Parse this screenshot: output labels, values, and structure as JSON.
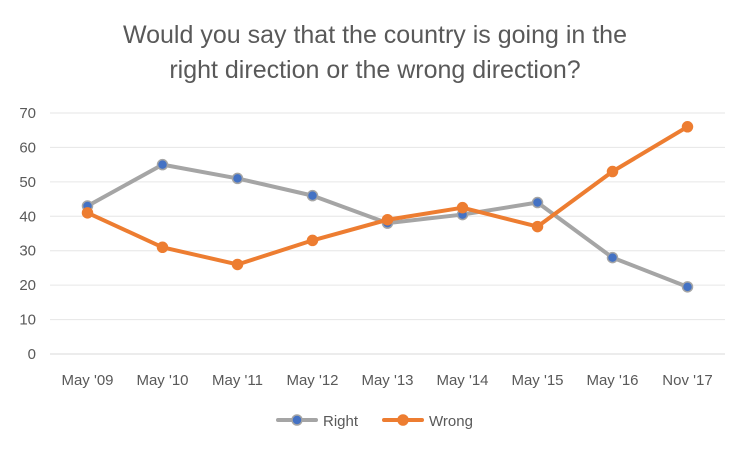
{
  "chart_data": {
    "type": "line",
    "title_lines": [
      "Would you say that the country is going in the",
      "right direction or the wrong direction?"
    ],
    "categories": [
      "May '09",
      "May '10",
      "May '11",
      "May '12",
      "May '13",
      "May '14",
      "May '15",
      "May '16",
      "Nov '17"
    ],
    "ylim": [
      0,
      70
    ],
    "yticks": [
      0,
      10,
      20,
      30,
      40,
      50,
      60,
      70
    ],
    "grid": true,
    "legend_position": "bottom",
    "series": [
      {
        "name": "Right",
        "color": "#a5a5a5",
        "marker_color": "#4472c4",
        "values": [
          43,
          55,
          51,
          46,
          38,
          40.5,
          44,
          28,
          19.5
        ]
      },
      {
        "name": "Wrong",
        "color": "#ed7d31",
        "marker_color": "#ed7d31",
        "values": [
          41,
          31,
          26,
          33,
          39,
          42.5,
          37,
          53,
          66
        ]
      }
    ]
  }
}
